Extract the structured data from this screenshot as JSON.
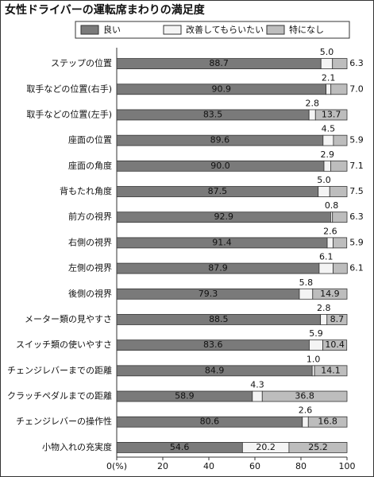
{
  "chart_data": {
    "type": "stacked-bar-horizontal",
    "title": "女性ドライバーの運転席まわりの満足度",
    "categories": [
      "ステップの位置",
      "取手などの位置(右手)",
      "取手などの位置(左手)",
      "座面の位置",
      "座面の角度",
      "背もたれ角度",
      "前方の視界",
      "右側の視界",
      "左側の視界",
      "後側の視界",
      "メーター類の見やすさ",
      "スイッチ類の使いやすさ",
      "チェンジレバーまでの距離",
      "クラッチペダルまでの距離",
      "チェンジレバーの操作性",
      "小物入れの充実度"
    ],
    "series": [
      {
        "name": "良い",
        "color": "#7a7a7a",
        "values": [
          88.7,
          90.9,
          83.5,
          89.6,
          90.0,
          87.5,
          92.9,
          91.4,
          87.9,
          79.3,
          88.5,
          83.6,
          84.9,
          58.9,
          80.6,
          54.6
        ],
        "value_labels": [
          "88.7",
          "90.9",
          "83.5",
          "89.6",
          "90.0",
          "87.5",
          "92.9",
          "91.4",
          "87.9",
          "79.3",
          "88.5",
          "83.6",
          "84.9",
          "58.9",
          "80.6",
          "54.6"
        ]
      },
      {
        "name": "改善してもらいたい",
        "color": "#f4f4f4",
        "values": [
          5.0,
          2.1,
          2.8,
          4.5,
          2.9,
          5.0,
          0.8,
          2.6,
          6.1,
          5.8,
          2.8,
          5.9,
          1.0,
          4.3,
          2.6,
          20.2
        ],
        "value_labels": [
          "5.0",
          "2.1",
          "2.8",
          "4.5",
          "2.9",
          "5.0",
          "0.8",
          "2.6",
          "6.1",
          "5.8",
          "2.8",
          "5.9",
          "1.0",
          "4.3",
          "2.6",
          "20.2"
        ]
      },
      {
        "name": "特になし",
        "color": "#bdbdbd",
        "values": [
          6.3,
          7.0,
          13.7,
          5.9,
          7.1,
          7.5,
          6.3,
          5.9,
          6.1,
          14.9,
          8.7,
          10.4,
          14.1,
          36.8,
          16.8,
          25.2
        ],
        "value_labels": [
          "6.3",
          "7.0",
          "13.7",
          "5.9",
          "7.1",
          "7.5",
          "6.3",
          "5.9",
          "6.1",
          "14.9",
          "8.7",
          "10.4",
          "14.1",
          "36.8",
          "16.8",
          "25.2"
        ]
      }
    ],
    "xlim": [
      0,
      100
    ],
    "xticks": [
      {
        "value": 0,
        "label": "0(%)"
      },
      20,
      40,
      60,
      80,
      100
    ]
  }
}
